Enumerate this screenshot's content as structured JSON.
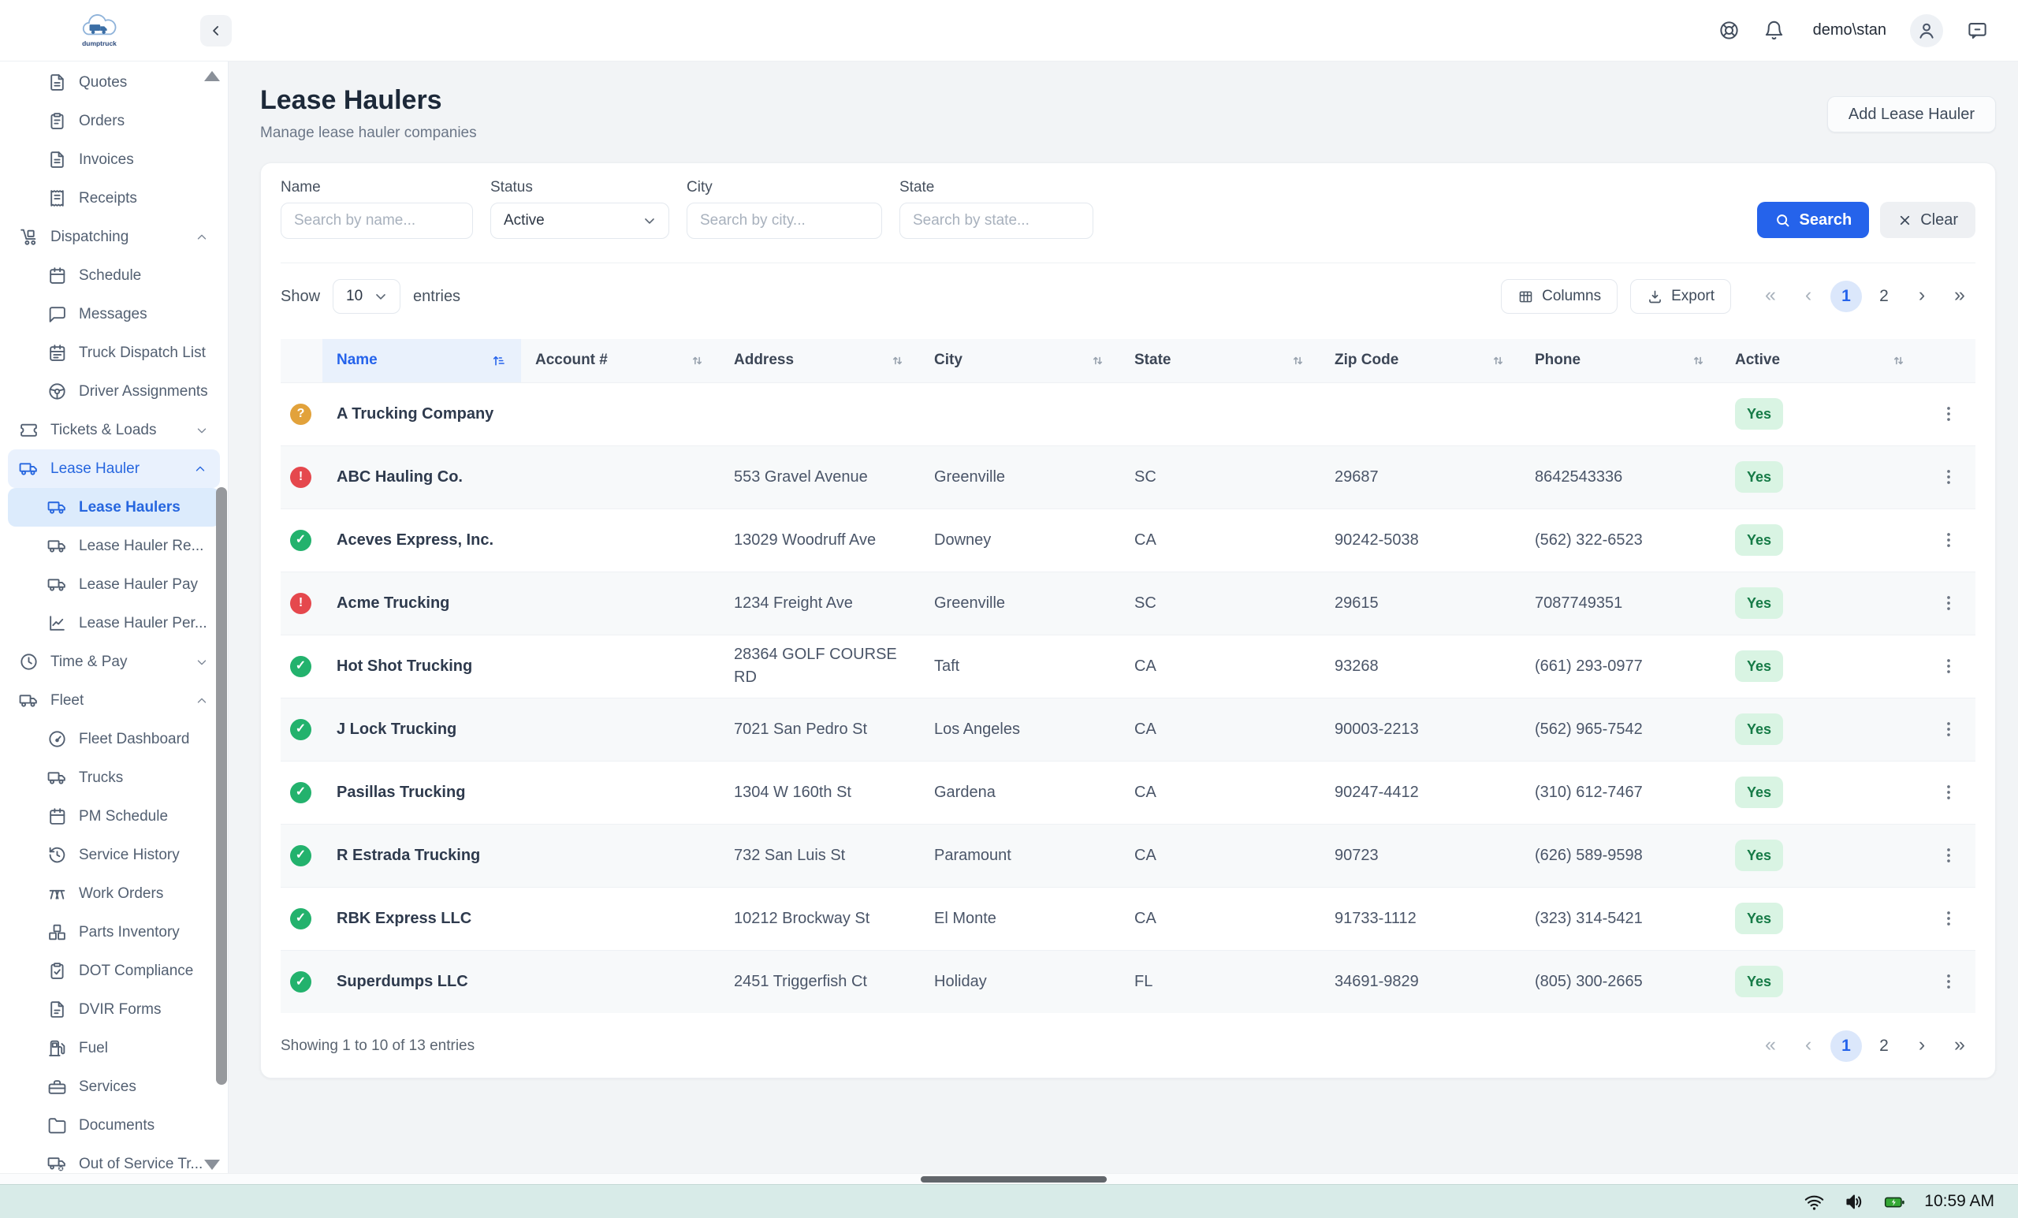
{
  "header": {
    "logo_text": "dumptruck",
    "user": "demo\\stan"
  },
  "sidebar": {
    "items": [
      {
        "label": "Quotes",
        "icon": "file-text",
        "sub": true
      },
      {
        "label": "Orders",
        "icon": "clipboard",
        "sub": true
      },
      {
        "label": "Invoices",
        "icon": "file-invoice",
        "sub": true
      },
      {
        "label": "Receipts",
        "icon": "receipt",
        "sub": true
      },
      {
        "label": "Dispatching",
        "icon": "dolly",
        "parent": true,
        "expanded": true
      },
      {
        "label": "Schedule",
        "icon": "calendar",
        "sub": true
      },
      {
        "label": "Messages",
        "icon": "chat",
        "sub": true
      },
      {
        "label": "Truck Dispatch List",
        "icon": "calendar-list",
        "sub": true
      },
      {
        "label": "Driver Assignments",
        "icon": "steering",
        "sub": true
      },
      {
        "label": "Tickets & Loads",
        "icon": "ticket",
        "parent": true,
        "expanded": false
      },
      {
        "label": "Lease Hauler",
        "icon": "truck",
        "parent": true,
        "expanded": true,
        "highlighted": true
      },
      {
        "label": "Lease Haulers",
        "icon": "truck",
        "sub": true,
        "active": true
      },
      {
        "label": "Lease Hauler Re...",
        "icon": "truck",
        "sub": true
      },
      {
        "label": "Lease Hauler Pay",
        "icon": "truck",
        "sub": true
      },
      {
        "label": "Lease Hauler Per...",
        "icon": "chart",
        "sub": true
      },
      {
        "label": "Time & Pay",
        "icon": "clock",
        "parent": true,
        "expanded": false
      },
      {
        "label": "Fleet",
        "icon": "truck",
        "parent": true,
        "expanded": true
      },
      {
        "label": "Fleet Dashboard",
        "icon": "gauge",
        "sub": true
      },
      {
        "label": "Trucks",
        "icon": "truck",
        "sub": true
      },
      {
        "label": "PM Schedule",
        "icon": "calendar",
        "sub": true
      },
      {
        "label": "Service History",
        "icon": "history",
        "sub": true
      },
      {
        "label": "Work Orders",
        "icon": "bench",
        "sub": true
      },
      {
        "label": "Parts Inventory",
        "icon": "boxes",
        "sub": true
      },
      {
        "label": "DOT Compliance",
        "icon": "clipboard-check",
        "sub": true
      },
      {
        "label": "DVIR Forms",
        "icon": "file",
        "sub": true
      },
      {
        "label": "Fuel",
        "icon": "fuel",
        "sub": true
      },
      {
        "label": "Services",
        "icon": "toolbox",
        "sub": true
      },
      {
        "label": "Documents",
        "icon": "folder",
        "sub": true
      },
      {
        "label": "Out of Service Tr...",
        "icon": "truck-x",
        "sub": true
      }
    ]
  },
  "page": {
    "title": "Lease Haulers",
    "subtitle": "Manage lease hauler companies",
    "add_button": "Add Lease Hauler"
  },
  "filters": {
    "name": {
      "label": "Name",
      "placeholder": "Search by name..."
    },
    "status": {
      "label": "Status",
      "value": "Active"
    },
    "city": {
      "label": "City",
      "placeholder": "Search by city..."
    },
    "state": {
      "label": "State",
      "placeholder": "Search by state..."
    },
    "search_label": "Search",
    "clear_label": "Clear"
  },
  "toolbar": {
    "show_label": "Show",
    "page_size": "10",
    "entries_label": "entries",
    "columns_label": "Columns",
    "export_label": "Export"
  },
  "pagination": {
    "icons": {
      "first": "«",
      "prev": "‹",
      "next": "›",
      "last": "»"
    },
    "pages": [
      "1",
      "2"
    ],
    "current": "1"
  },
  "table": {
    "columns": [
      "Name",
      "Account #",
      "Address",
      "City",
      "State",
      "Zip Code",
      "Phone",
      "Active"
    ],
    "rows": [
      {
        "status": "warning",
        "name": "A Trucking Company",
        "account": "",
        "address": "",
        "city": "",
        "state": "",
        "zip": "",
        "phone": "",
        "active": "Yes"
      },
      {
        "status": "error",
        "name": "ABC Hauling Co.",
        "account": "",
        "address": "553 Gravel Avenue",
        "city": "Greenville",
        "state": "SC",
        "zip": "29687",
        "phone": "8642543336",
        "active": "Yes"
      },
      {
        "status": "ok",
        "name": "Aceves Express, Inc.",
        "account": "",
        "address": "13029 Woodruff Ave",
        "city": "Downey",
        "state": "CA",
        "zip": "90242-5038",
        "phone": "(562) 322-6523",
        "active": "Yes"
      },
      {
        "status": "error",
        "name": "Acme Trucking",
        "account": "",
        "address": "1234 Freight Ave",
        "city": "Greenville",
        "state": "SC",
        "zip": "29615",
        "phone": "7087749351",
        "active": "Yes"
      },
      {
        "status": "ok",
        "name": "Hot Shot Trucking",
        "account": "",
        "address": "28364 GOLF COURSE RD",
        "city": "Taft",
        "state": "CA",
        "zip": "93268",
        "phone": "(661) 293-0977",
        "active": "Yes"
      },
      {
        "status": "ok",
        "name": "J Lock Trucking",
        "account": "",
        "address": "7021 San Pedro St",
        "city": "Los Angeles",
        "state": "CA",
        "zip": "90003-2213",
        "phone": "(562) 965-7542",
        "active": "Yes"
      },
      {
        "status": "ok",
        "name": "Pasillas Trucking",
        "account": "",
        "address": "1304 W 160th St",
        "city": "Gardena",
        "state": "CA",
        "zip": "90247-4412",
        "phone": "(310) 612-7467",
        "active": "Yes"
      },
      {
        "status": "ok",
        "name": "R Estrada Trucking",
        "account": "",
        "address": "732 San Luis St",
        "city": "Paramount",
        "state": "CA",
        "zip": "90723",
        "phone": "(626) 589-9598",
        "active": "Yes"
      },
      {
        "status": "ok",
        "name": "RBK Express LLC",
        "account": "",
        "address": "10212 Brockway St",
        "city": "El Monte",
        "state": "CA",
        "zip": "91733-1112",
        "phone": "(323) 314-5421",
        "active": "Yes"
      },
      {
        "status": "ok",
        "name": "Superdumps LLC",
        "account": "",
        "address": "2451 Triggerfish Ct",
        "city": "Holiday",
        "state": "FL",
        "zip": "34691-9829",
        "phone": "(805) 300-2665",
        "active": "Yes"
      }
    ],
    "footer": "Showing 1 to 10 of 13 entries"
  },
  "taskbar": {
    "time": "10:59 AM"
  },
  "colors": {
    "accent": "#2563eb",
    "status_ok": "#23b26d",
    "status_warning": "#e2a23b",
    "status_error": "#e5484d",
    "badge_bg": "#d9f4e3",
    "badge_fg": "#157a46"
  }
}
